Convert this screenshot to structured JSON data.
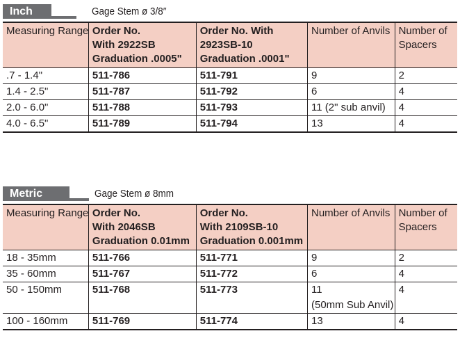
{
  "inch": {
    "tab_label": "Inch",
    "stem": "Gage Stem ø 3/8″",
    "headers": {
      "range": "Measuring Range",
      "order1": [
        "Order No.",
        "With 2922SB",
        "Graduation .0005\""
      ],
      "order2": [
        "Order No. With",
        "2923SB-10",
        "Graduation .0001\""
      ],
      "anvils": "Number of Anvils",
      "spacers": [
        "Number of",
        "Spacers"
      ]
    },
    "rows": [
      {
        "range": ".7 - 1.4\"",
        "order1": "511-786",
        "order2": "511-791",
        "anvils": "9",
        "spacers": "2"
      },
      {
        "range": "1.4 - 2.5\"",
        "order1": "511-787",
        "order2": "511-792",
        "anvils": "6",
        "spacers": "4"
      },
      {
        "range": "2.0 - 6.0\"",
        "order1": "511-788",
        "order2": "511-793",
        "anvils": "11 (2\" sub anvil)",
        "spacers": "4"
      },
      {
        "range": "4.0 - 6.5\"",
        "order1": "511-789",
        "order2": "511-794",
        "anvils": "13",
        "spacers": "4"
      }
    ]
  },
  "metric": {
    "tab_label": "Metric",
    "stem": "Gage Stem ø 8mm",
    "headers": {
      "range": "Measuring Range",
      "order1": [
        "Order No.",
        "With 2046SB",
        "Graduation 0.01mm"
      ],
      "order2": [
        "Order No.",
        "With 2109SB-10",
        "Graduation 0.001mm"
      ],
      "anvils": "Number of Anvils",
      "spacers": [
        "Number of",
        "Spacers"
      ]
    },
    "rows": [
      {
        "range": "18 - 35mm",
        "order1": "511-766",
        "order2": "511-771",
        "anvils": "9",
        "anvils2": "",
        "spacers": "2"
      },
      {
        "range": "35 - 60mm",
        "order1": "511-767",
        "order2": "511-772",
        "anvils": "6",
        "anvils2": "",
        "spacers": "4"
      },
      {
        "range": "50 - 150mm",
        "order1": "511-768",
        "order2": "511-773",
        "anvils": "11",
        "anvils2": "(50mm Sub Anvil)",
        "spacers": "4"
      },
      {
        "range": "100 - 160mm",
        "order1": "511-769",
        "order2": "511-774",
        "anvils": "13",
        "anvils2": "",
        "spacers": "4"
      }
    ]
  },
  "colors": {
    "header_bg": "#f4cfc4",
    "tab_bg": "#6d6e71",
    "text": "#231f20"
  }
}
